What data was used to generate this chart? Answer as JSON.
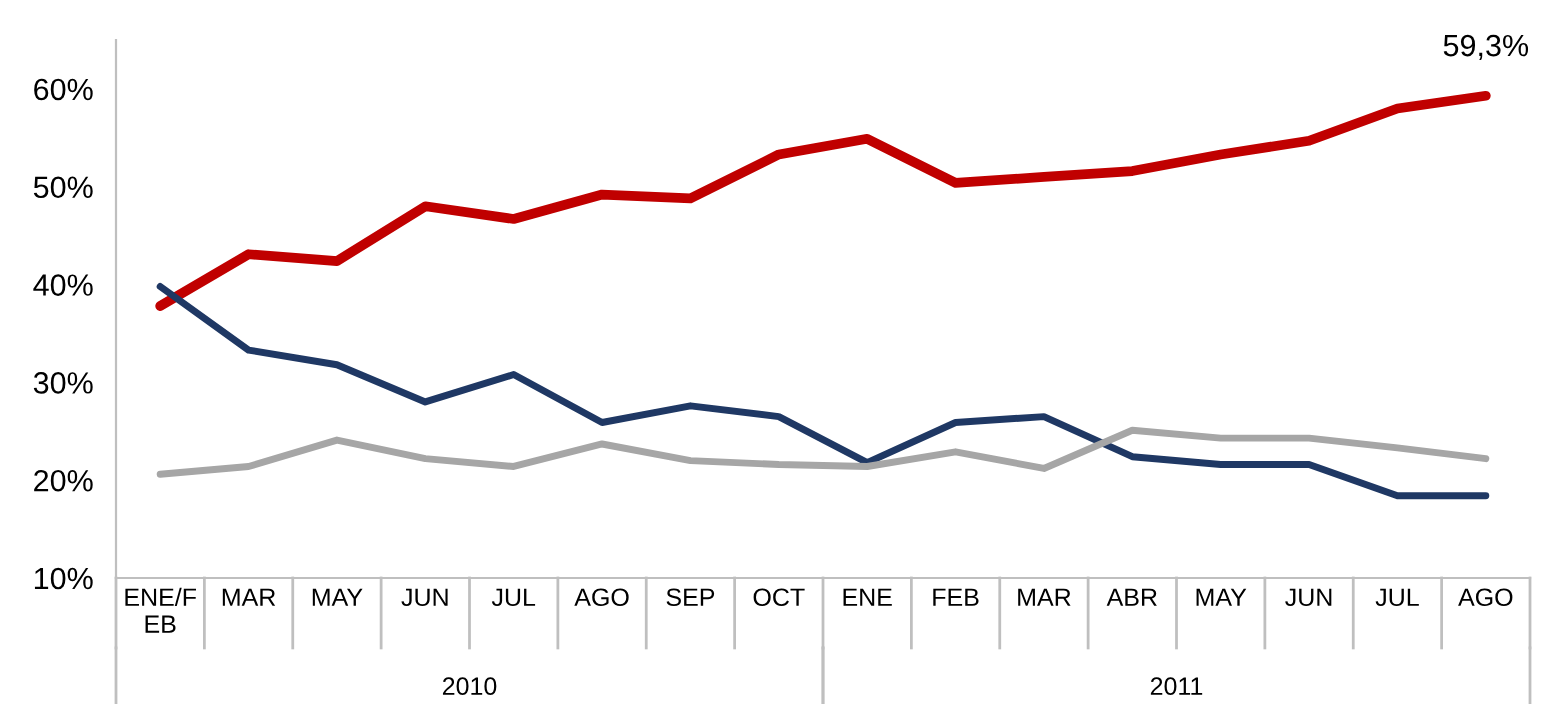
{
  "chart_data": {
    "type": "line",
    "categories": [
      "ENE/FEB",
      "MAR",
      "MAY",
      "JUN",
      "JUL",
      "AGO",
      "SEP",
      "OCT",
      "ENE",
      "FEB",
      "MAR",
      "ABR",
      "MAY",
      "JUN",
      "JUL",
      "AGO"
    ],
    "series": [
      {
        "color": "#c00000",
        "values": [
          37.8,
          43.1,
          42.4,
          48.0,
          46.7,
          49.2,
          48.8,
          53.3,
          54.9,
          50.4,
          51.0,
          51.6,
          53.3,
          54.7,
          58.0,
          59.3
        ]
      },
      {
        "color": "#1f3864",
        "values": [
          39.8,
          33.3,
          31.8,
          28.0,
          30.8,
          25.9,
          27.6,
          26.5,
          21.8,
          25.9,
          26.5,
          22.4,
          21.6,
          21.6,
          18.4,
          18.4
        ]
      },
      {
        "color": "#a6a6a6",
        "values": [
          20.6,
          21.4,
          24.1,
          22.2,
          21.4,
          23.7,
          22.0,
          21.6,
          21.4,
          22.9,
          21.2,
          25.1,
          24.3,
          24.3,
          23.3,
          22.2
        ]
      }
    ],
    "ylim": [
      10,
      65
    ],
    "yticks": [
      {
        "value": 10,
        "label": "10%"
      },
      {
        "value": 20,
        "label": "20%"
      },
      {
        "value": 30,
        "label": "30%"
      },
      {
        "value": 40,
        "label": "40%"
      },
      {
        "value": 50,
        "label": "50%"
      },
      {
        "value": 60,
        "label": "60%"
      }
    ],
    "grid": false,
    "legend": false,
    "marker": "none",
    "line_style": "solid",
    "annotations": [
      "59,3%",
      "2010",
      "2011"
    ]
  }
}
